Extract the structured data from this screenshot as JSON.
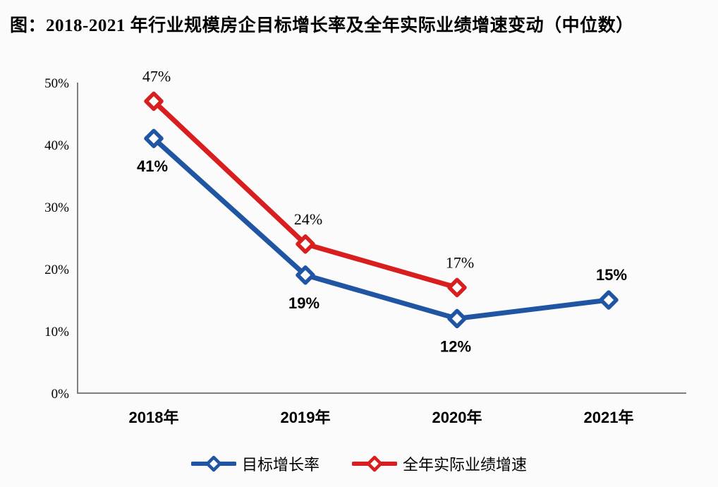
{
  "title": "图：2018-2021 年行业规模房企目标增长率及全年实际业绩增速变动（中位数）",
  "colors": {
    "blue_series": "#2055A4",
    "red_series": "#D81E1E",
    "axis": "#7F7F7F",
    "text": "#000000",
    "background": "#FBFBFB"
  },
  "chart_data": {
    "type": "line",
    "categories": [
      "2018年",
      "2019年",
      "2020年",
      "2021年"
    ],
    "series": [
      {
        "name": "目标增长率",
        "color": "#2055A4",
        "values": [
          41,
          19,
          12,
          15
        ],
        "point_labels": [
          "41%",
          "19%",
          "12%",
          "15%"
        ],
        "label_positions": [
          "below",
          "below",
          "below",
          "above"
        ],
        "label_bold": true
      },
      {
        "name": "全年实际业绩增速",
        "color": "#D81E1E",
        "values": [
          47,
          24,
          17,
          null
        ],
        "point_labels": [
          "47%",
          "24%",
          "17%",
          ""
        ],
        "label_positions": [
          "above",
          "above",
          "above",
          "above"
        ],
        "label_bold": false
      }
    ],
    "title": "图：2018-2021 年行业规模房企目标增长率及全年实际业绩增速变动（中位数）",
    "xlabel": "",
    "ylabel": "",
    "ylim": [
      0,
      50
    ],
    "ytick_labels": [
      "0%",
      "10%",
      "20%",
      "30%",
      "40%",
      "50%"
    ],
    "ytick_values": [
      0,
      10,
      20,
      30,
      40,
      50
    ],
    "grid": false,
    "marker": "diamond",
    "legend_position": "bottom"
  }
}
